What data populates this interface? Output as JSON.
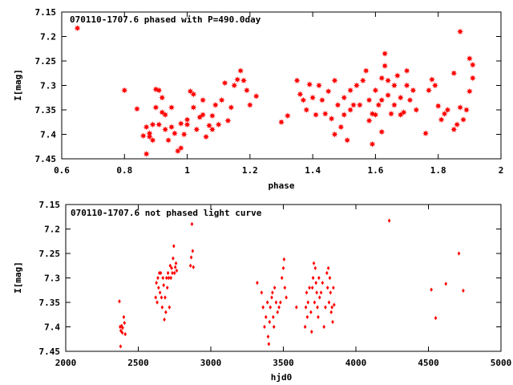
{
  "chart_data": [
    {
      "type": "scatter",
      "title": "070110-1707.6 phased with P=490.0day",
      "xlabel": "phase",
      "ylabel": "I[mag]",
      "xlim": [
        0.6,
        2.0
      ],
      "ylim": [
        7.15,
        7.45
      ],
      "y_inverted": true,
      "marker": "star",
      "color": "#ff0000",
      "xticks": [
        0.6,
        0.8,
        1.0,
        1.2,
        1.4,
        1.6,
        1.8,
        2.0
      ],
      "xtick_labels": [
        "0.6",
        "0.8",
        "1",
        "1.2",
        "1.4",
        "1.6",
        "1.8",
        "2"
      ],
      "yticks": [
        7.15,
        7.2,
        7.25,
        7.3,
        7.35,
        7.4,
        7.45
      ],
      "ytick_labels": [
        "7.15",
        "7.2",
        "7.25",
        "7.3",
        "7.35",
        "7.4",
        "7.45"
      ],
      "grid": false,
      "series": [
        {
          "points": [
            [
              0.65,
              7.183
            ],
            [
              0.8,
              7.31
            ],
            [
              0.84,
              7.348
            ],
            [
              0.86,
              7.403
            ],
            [
              0.87,
              7.385
            ],
            [
              0.87,
              7.44
            ],
            [
              0.88,
              7.405
            ],
            [
              0.88,
              7.398
            ],
            [
              0.89,
              7.412
            ],
            [
              0.89,
              7.38
            ],
            [
              0.9,
              7.308
            ],
            [
              0.9,
              7.345
            ],
            [
              0.91,
              7.31
            ],
            [
              0.91,
              7.38
            ],
            [
              0.92,
              7.325
            ],
            [
              0.92,
              7.355
            ],
            [
              0.93,
              7.39
            ],
            [
              0.93,
              7.36
            ],
            [
              0.94,
              7.412
            ],
            [
              0.95,
              7.345
            ],
            [
              0.95,
              7.385
            ],
            [
              0.96,
              7.398
            ],
            [
              0.97,
              7.434
            ],
            [
              0.98,
              7.428
            ],
            [
              0.98,
              7.378
            ],
            [
              0.99,
              7.4
            ],
            [
              1.0,
              7.37
            ],
            [
              1.0,
              7.38
            ],
            [
              1.01,
              7.312
            ],
            [
              1.02,
              7.318
            ],
            [
              1.02,
              7.345
            ],
            [
              1.03,
              7.39
            ],
            [
              1.04,
              7.365
            ],
            [
              1.05,
              7.33
            ],
            [
              1.05,
              7.36
            ],
            [
              1.06,
              7.405
            ],
            [
              1.07,
              7.382
            ],
            [
              1.08,
              7.362
            ],
            [
              1.08,
              7.39
            ],
            [
              1.09,
              7.34
            ],
            [
              1.1,
              7.38
            ],
            [
              1.11,
              7.33
            ],
            [
              1.12,
              7.295
            ],
            [
              1.13,
              7.372
            ],
            [
              1.14,
              7.345
            ],
            [
              1.15,
              7.3
            ],
            [
              1.16,
              7.288
            ],
            [
              1.17,
              7.27
            ],
            [
              1.18,
              7.29
            ],
            [
              1.19,
              7.31
            ],
            [
              1.2,
              7.34
            ],
            [
              1.22,
              7.322
            ],
            [
              1.3,
              7.375
            ],
            [
              1.32,
              7.362
            ],
            [
              1.35,
              7.29
            ],
            [
              1.36,
              7.318
            ],
            [
              1.37,
              7.33
            ],
            [
              1.38,
              7.35
            ],
            [
              1.39,
              7.298
            ],
            [
              1.4,
              7.325
            ],
            [
              1.41,
              7.36
            ],
            [
              1.42,
              7.3
            ],
            [
              1.43,
              7.33
            ],
            [
              1.44,
              7.358
            ],
            [
              1.45,
              7.312
            ],
            [
              1.46,
              7.368
            ],
            [
              1.47,
              7.4
            ],
            [
              1.47,
              7.29
            ],
            [
              1.48,
              7.34
            ],
            [
              1.49,
              7.385
            ],
            [
              1.5,
              7.36
            ],
            [
              1.5,
              7.325
            ],
            [
              1.51,
              7.412
            ],
            [
              1.52,
              7.35
            ],
            [
              1.52,
              7.31
            ],
            [
              1.53,
              7.34
            ],
            [
              1.54,
              7.3
            ],
            [
              1.55,
              7.34
            ],
            [
              1.56,
              7.29
            ],
            [
              1.57,
              7.27
            ],
            [
              1.58,
              7.33
            ],
            [
              1.58,
              7.372
            ],
            [
              1.59,
              7.358
            ],
            [
              1.6,
              7.31
            ],
            [
              1.6,
              7.36
            ],
            [
              1.61,
              7.34
            ],
            [
              1.62,
              7.395
            ],
            [
              1.62,
              7.285
            ],
            [
              1.63,
              7.235
            ],
            [
              1.63,
              7.26
            ],
            [
              1.64,
              7.32
            ],
            [
              1.65,
              7.358
            ],
            [
              1.66,
              7.3
            ],
            [
              1.67,
              7.28
            ],
            [
              1.68,
              7.325
            ],
            [
              1.69,
              7.355
            ],
            [
              1.7,
              7.3
            ],
            [
              1.71,
              7.33
            ],
            [
              1.72,
              7.31
            ],
            [
              1.73,
              7.35
            ],
            [
              1.59,
              7.42
            ],
            [
              1.62,
              7.33
            ],
            [
              1.64,
              7.29
            ],
            [
              1.66,
              7.34
            ],
            [
              1.68,
              7.36
            ],
            [
              1.7,
              7.27
            ],
            [
              1.76,
              7.398
            ],
            [
              1.77,
              7.31
            ],
            [
              1.78,
              7.288
            ],
            [
              1.79,
              7.3
            ],
            [
              1.8,
              7.342
            ],
            [
              1.81,
              7.37
            ],
            [
              1.82,
              7.358
            ],
            [
              1.83,
              7.35
            ],
            [
              1.85,
              7.275
            ],
            [
              1.85,
              7.39
            ],
            [
              1.86,
              7.38
            ],
            [
              1.87,
              7.19
            ],
            [
              1.87,
              7.345
            ],
            [
              1.88,
              7.37
            ],
            [
              1.89,
              7.35
            ],
            [
              1.9,
              7.245
            ],
            [
              1.9,
              7.312
            ],
            [
              1.91,
              7.258
            ],
            [
              1.91,
              7.285
            ]
          ]
        }
      ]
    },
    {
      "type": "scatter",
      "title": "070110-1707.6 not phased light curve",
      "xlabel": "hjd0",
      "ylabel": "I[mag]",
      "xlim": [
        2000,
        5000
      ],
      "ylim": [
        7.15,
        7.45
      ],
      "y_inverted": true,
      "marker": "diamond",
      "color": "#ff0000",
      "xticks": [
        2000,
        2500,
        3000,
        3500,
        4000,
        4500,
        5000
      ],
      "xtick_labels": [
        "2000",
        "2500",
        "3000",
        "3500",
        "4000",
        "4500",
        "5000"
      ],
      "yticks": [
        7.15,
        7.2,
        7.25,
        7.3,
        7.35,
        7.4,
        7.45
      ],
      "ytick_labels": [
        "7.15",
        "7.2",
        "7.25",
        "7.3",
        "7.35",
        "7.4",
        "7.45"
      ],
      "grid": false,
      "series": [
        {
          "points": [
            [
              2370,
              7.348
            ],
            [
              2375,
              7.4
            ],
            [
              2378,
              7.44
            ],
            [
              2380,
              7.408
            ],
            [
              2385,
              7.398
            ],
            [
              2390,
              7.412
            ],
            [
              2392,
              7.402
            ],
            [
              2400,
              7.38
            ],
            [
              2405,
              7.392
            ],
            [
              2410,
              7.415
            ],
            [
              2620,
              7.34
            ],
            [
              2625,
              7.31
            ],
            [
              2630,
              7.35
            ],
            [
              2635,
              7.3
            ],
            [
              2640,
              7.32
            ],
            [
              2645,
              7.29
            ],
            [
              2650,
              7.33
            ],
            [
              2655,
              7.29
            ],
            [
              2660,
              7.34
            ],
            [
              2665,
              7.36
            ],
            [
              2670,
              7.3
            ],
            [
              2675,
              7.315
            ],
            [
              2680,
              7.385
            ],
            [
              2685,
              7.34
            ],
            [
              2690,
              7.37
            ],
            [
              2695,
              7.3
            ],
            [
              2700,
              7.32
            ],
            [
              2705,
              7.29
            ],
            [
              2710,
              7.3
            ],
            [
              2715,
              7.36
            ],
            [
              2720,
              7.275
            ],
            [
              2725,
              7.3
            ],
            [
              2730,
              7.28
            ],
            [
              2735,
              7.29
            ],
            [
              2740,
              7.26
            ],
            [
              2745,
              7.235
            ],
            [
              2750,
              7.29
            ],
            [
              2755,
              7.278
            ],
            [
              2760,
              7.27
            ],
            [
              2765,
              7.285
            ],
            [
              2860,
              7.275
            ],
            [
              2865,
              7.258
            ],
            [
              2870,
              7.19
            ],
            [
              2875,
              7.245
            ],
            [
              2880,
              7.278
            ],
            [
              3320,
              7.31
            ],
            [
              3350,
              7.33
            ],
            [
              3360,
              7.36
            ],
            [
              3370,
              7.4
            ],
            [
              3380,
              7.38
            ],
            [
              3390,
              7.35
            ],
            [
              3395,
              7.42
            ],
            [
              3400,
              7.435
            ],
            [
              3405,
              7.39
            ],
            [
              3410,
              7.36
            ],
            [
              3420,
              7.34
            ],
            [
              3425,
              7.33
            ],
            [
              3430,
              7.38
            ],
            [
              3435,
              7.4
            ],
            [
              3440,
              7.32
            ],
            [
              3450,
              7.35
            ],
            [
              3460,
              7.37
            ],
            [
              3470,
              7.36
            ],
            [
              3480,
              7.35
            ],
            [
              3490,
              7.3
            ],
            [
              3500,
              7.28
            ],
            [
              3505,
              7.262
            ],
            [
              3510,
              7.32
            ],
            [
              3520,
              7.34
            ],
            [
              3590,
              7.36
            ],
            [
              3650,
              7.4
            ],
            [
              3655,
              7.36
            ],
            [
              3660,
              7.33
            ],
            [
              3665,
              7.38
            ],
            [
              3670,
              7.35
            ],
            [
              3680,
              7.32
            ],
            [
              3690,
              7.37
            ],
            [
              3695,
              7.41
            ],
            [
              3700,
              7.32
            ],
            [
              3705,
              7.3
            ],
            [
              3710,
              7.27
            ],
            [
              3715,
              7.35
            ],
            [
              3720,
              7.28
            ],
            [
              3725,
              7.31
            ],
            [
              3730,
              7.33
            ],
            [
              3735,
              7.36
            ],
            [
              3740,
              7.38
            ],
            [
              3745,
              7.3
            ],
            [
              3750,
              7.34
            ],
            [
              3760,
              7.33
            ],
            [
              3770,
              7.31
            ],
            [
              3780,
              7.4
            ],
            [
              3790,
              7.36
            ],
            [
              3800,
              7.29
            ],
            [
              3805,
              7.32
            ],
            [
              3810,
              7.28
            ],
            [
              3815,
              7.35
            ],
            [
              3820,
              7.3
            ],
            [
              3825,
              7.33
            ],
            [
              3830,
              7.37
            ],
            [
              3835,
              7.36
            ],
            [
              3840,
              7.39
            ],
            [
              3845,
              7.32
            ],
            [
              3850,
              7.355
            ],
            [
              4230,
              7.183
            ],
            [
              4520,
              7.324
            ],
            [
              4550,
              7.382
            ],
            [
              4620,
              7.312
            ],
            [
              4710,
              7.25
            ],
            [
              4740,
              7.326
            ]
          ]
        }
      ]
    }
  ]
}
